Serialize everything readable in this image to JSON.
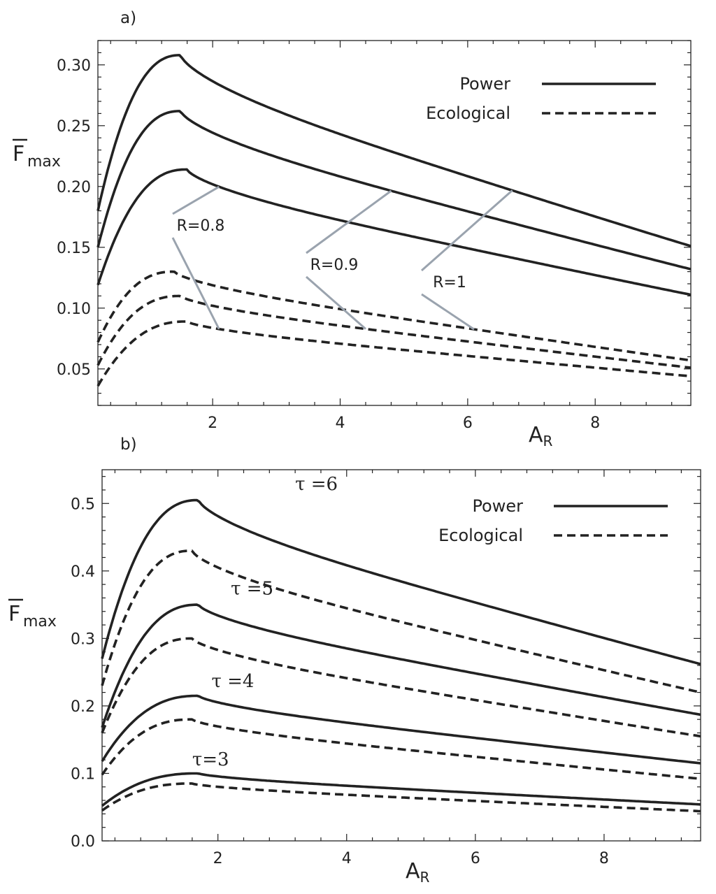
{
  "chart_data": [
    {
      "panel_label": "a)",
      "type": "line",
      "xlabel": "A",
      "xlabel_sub": "R",
      "ylabel_sub": "max",
      "xlim": [
        0.2,
        9.5
      ],
      "ylim": [
        0.02,
        0.32
      ],
      "x_ticks": [
        2,
        4,
        6,
        8
      ],
      "x_tick_labels": [
        "2",
        "4",
        "6",
        "8"
      ],
      "y_ticks": [
        0.05,
        0.1,
        0.15,
        0.2,
        0.25,
        0.3
      ],
      "y_tick_labels": [
        "0.05",
        "0.10",
        "0.15",
        "0.20",
        "0.25",
        "0.30"
      ],
      "legend": {
        "position": "top-right",
        "entries": [
          {
            "label": "Power",
            "style": "solid"
          },
          {
            "label": "Ecological",
            "style": "dashed"
          }
        ]
      },
      "series": [
        {
          "name": "Power R=1",
          "style": "solid",
          "peak_x": 1.5,
          "peak_y": 0.308,
          "start_y": 0.18,
          "end_y": 0.151
        },
        {
          "name": "Power R=0.9",
          "style": "solid",
          "peak_x": 1.5,
          "peak_y": 0.262,
          "start_y": 0.15,
          "end_y": 0.132
        },
        {
          "name": "Power R=0.8",
          "style": "solid",
          "peak_x": 1.6,
          "peak_y": 0.214,
          "start_y": 0.119,
          "end_y": 0.111
        },
        {
          "name": "Ecological R=1",
          "style": "dashed",
          "peak_x": 1.4,
          "peak_y": 0.13,
          "start_y": 0.072,
          "end_y": 0.057
        },
        {
          "name": "Ecological R=0.9",
          "style": "dashed",
          "peak_x": 1.5,
          "peak_y": 0.11,
          "start_y": 0.053,
          "end_y": 0.051
        },
        {
          "name": "Ecological R=0.8",
          "style": "dashed",
          "peak_x": 1.6,
          "peak_y": 0.089,
          "start_y": 0.036,
          "end_y": 0.044
        }
      ],
      "annotations": [
        {
          "text": "R=0.8",
          "series_upper": "Power R=0.8",
          "series_lower": "Ecological R=0.8",
          "x_upper": 2.1,
          "x_lower": 2.1
        },
        {
          "text": "R=0.9",
          "series_upper": "Power R=0.9",
          "series_lower": "Ecological R=0.9",
          "x_upper": 4.8,
          "x_lower": 4.4
        },
        {
          "text": "R=1",
          "series_upper": "Power R=1",
          "series_lower": "Ecological R=1",
          "x_upper": 6.7,
          "x_lower": 6.1
        }
      ]
    },
    {
      "panel_label": "b)",
      "type": "line",
      "xlabel": "A",
      "xlabel_sub": "R",
      "ylabel_sub": "max",
      "xlim": [
        0.2,
        9.5
      ],
      "ylim": [
        0.0,
        0.55
      ],
      "x_ticks": [
        2,
        4,
        6,
        8
      ],
      "x_tick_labels": [
        "2",
        "4",
        "6",
        "8"
      ],
      "y_ticks": [
        0.0,
        0.1,
        0.2,
        0.3,
        0.4,
        0.5
      ],
      "y_tick_labels": [
        "0.0",
        "0.1",
        "0.2",
        "0.3",
        "0.4",
        "0.5"
      ],
      "legend": {
        "position": "top-right",
        "entries": [
          {
            "label": "Power",
            "style": "solid"
          },
          {
            "label": "Ecological",
            "style": "dashed"
          }
        ]
      },
      "series": [
        {
          "name": "Power τ=6",
          "style": "solid",
          "peak_x": 1.7,
          "peak_y": 0.505,
          "start_y": 0.27,
          "end_y": 0.262
        },
        {
          "name": "Ecological τ=6",
          "style": "dashed",
          "peak_x": 1.6,
          "peak_y": 0.43,
          "start_y": 0.23,
          "end_y": 0.22
        },
        {
          "name": "Power τ=5",
          "style": "solid",
          "peak_x": 1.7,
          "peak_y": 0.35,
          "start_y": 0.168,
          "end_y": 0.187
        },
        {
          "name": "Ecological τ=5",
          "style": "dashed",
          "peak_x": 1.6,
          "peak_y": 0.3,
          "start_y": 0.16,
          "end_y": 0.155
        },
        {
          "name": "Power τ=4",
          "style": "solid",
          "peak_x": 1.7,
          "peak_y": 0.215,
          "start_y": 0.118,
          "end_y": 0.115
        },
        {
          "name": "Ecological τ=4",
          "style": "dashed",
          "peak_x": 1.6,
          "peak_y": 0.18,
          "start_y": 0.098,
          "end_y": 0.092
        },
        {
          "name": "Power τ=3",
          "style": "solid",
          "peak_x": 1.7,
          "peak_y": 0.1,
          "start_y": 0.052,
          "end_y": 0.054
        },
        {
          "name": "Ecological τ=3",
          "style": "dashed",
          "peak_x": 1.6,
          "peak_y": 0.085,
          "start_y": 0.045,
          "end_y": 0.044
        }
      ],
      "annotations": [
        {
          "text": "τ =6",
          "x": 3.2,
          "y": 0.52
        },
        {
          "text": "τ =5",
          "x": 2.2,
          "y": 0.365
        },
        {
          "text": "τ =4",
          "x": 1.9,
          "y": 0.228
        },
        {
          "text": "τ=3",
          "x": 1.6,
          "y": 0.112
        }
      ]
    }
  ]
}
